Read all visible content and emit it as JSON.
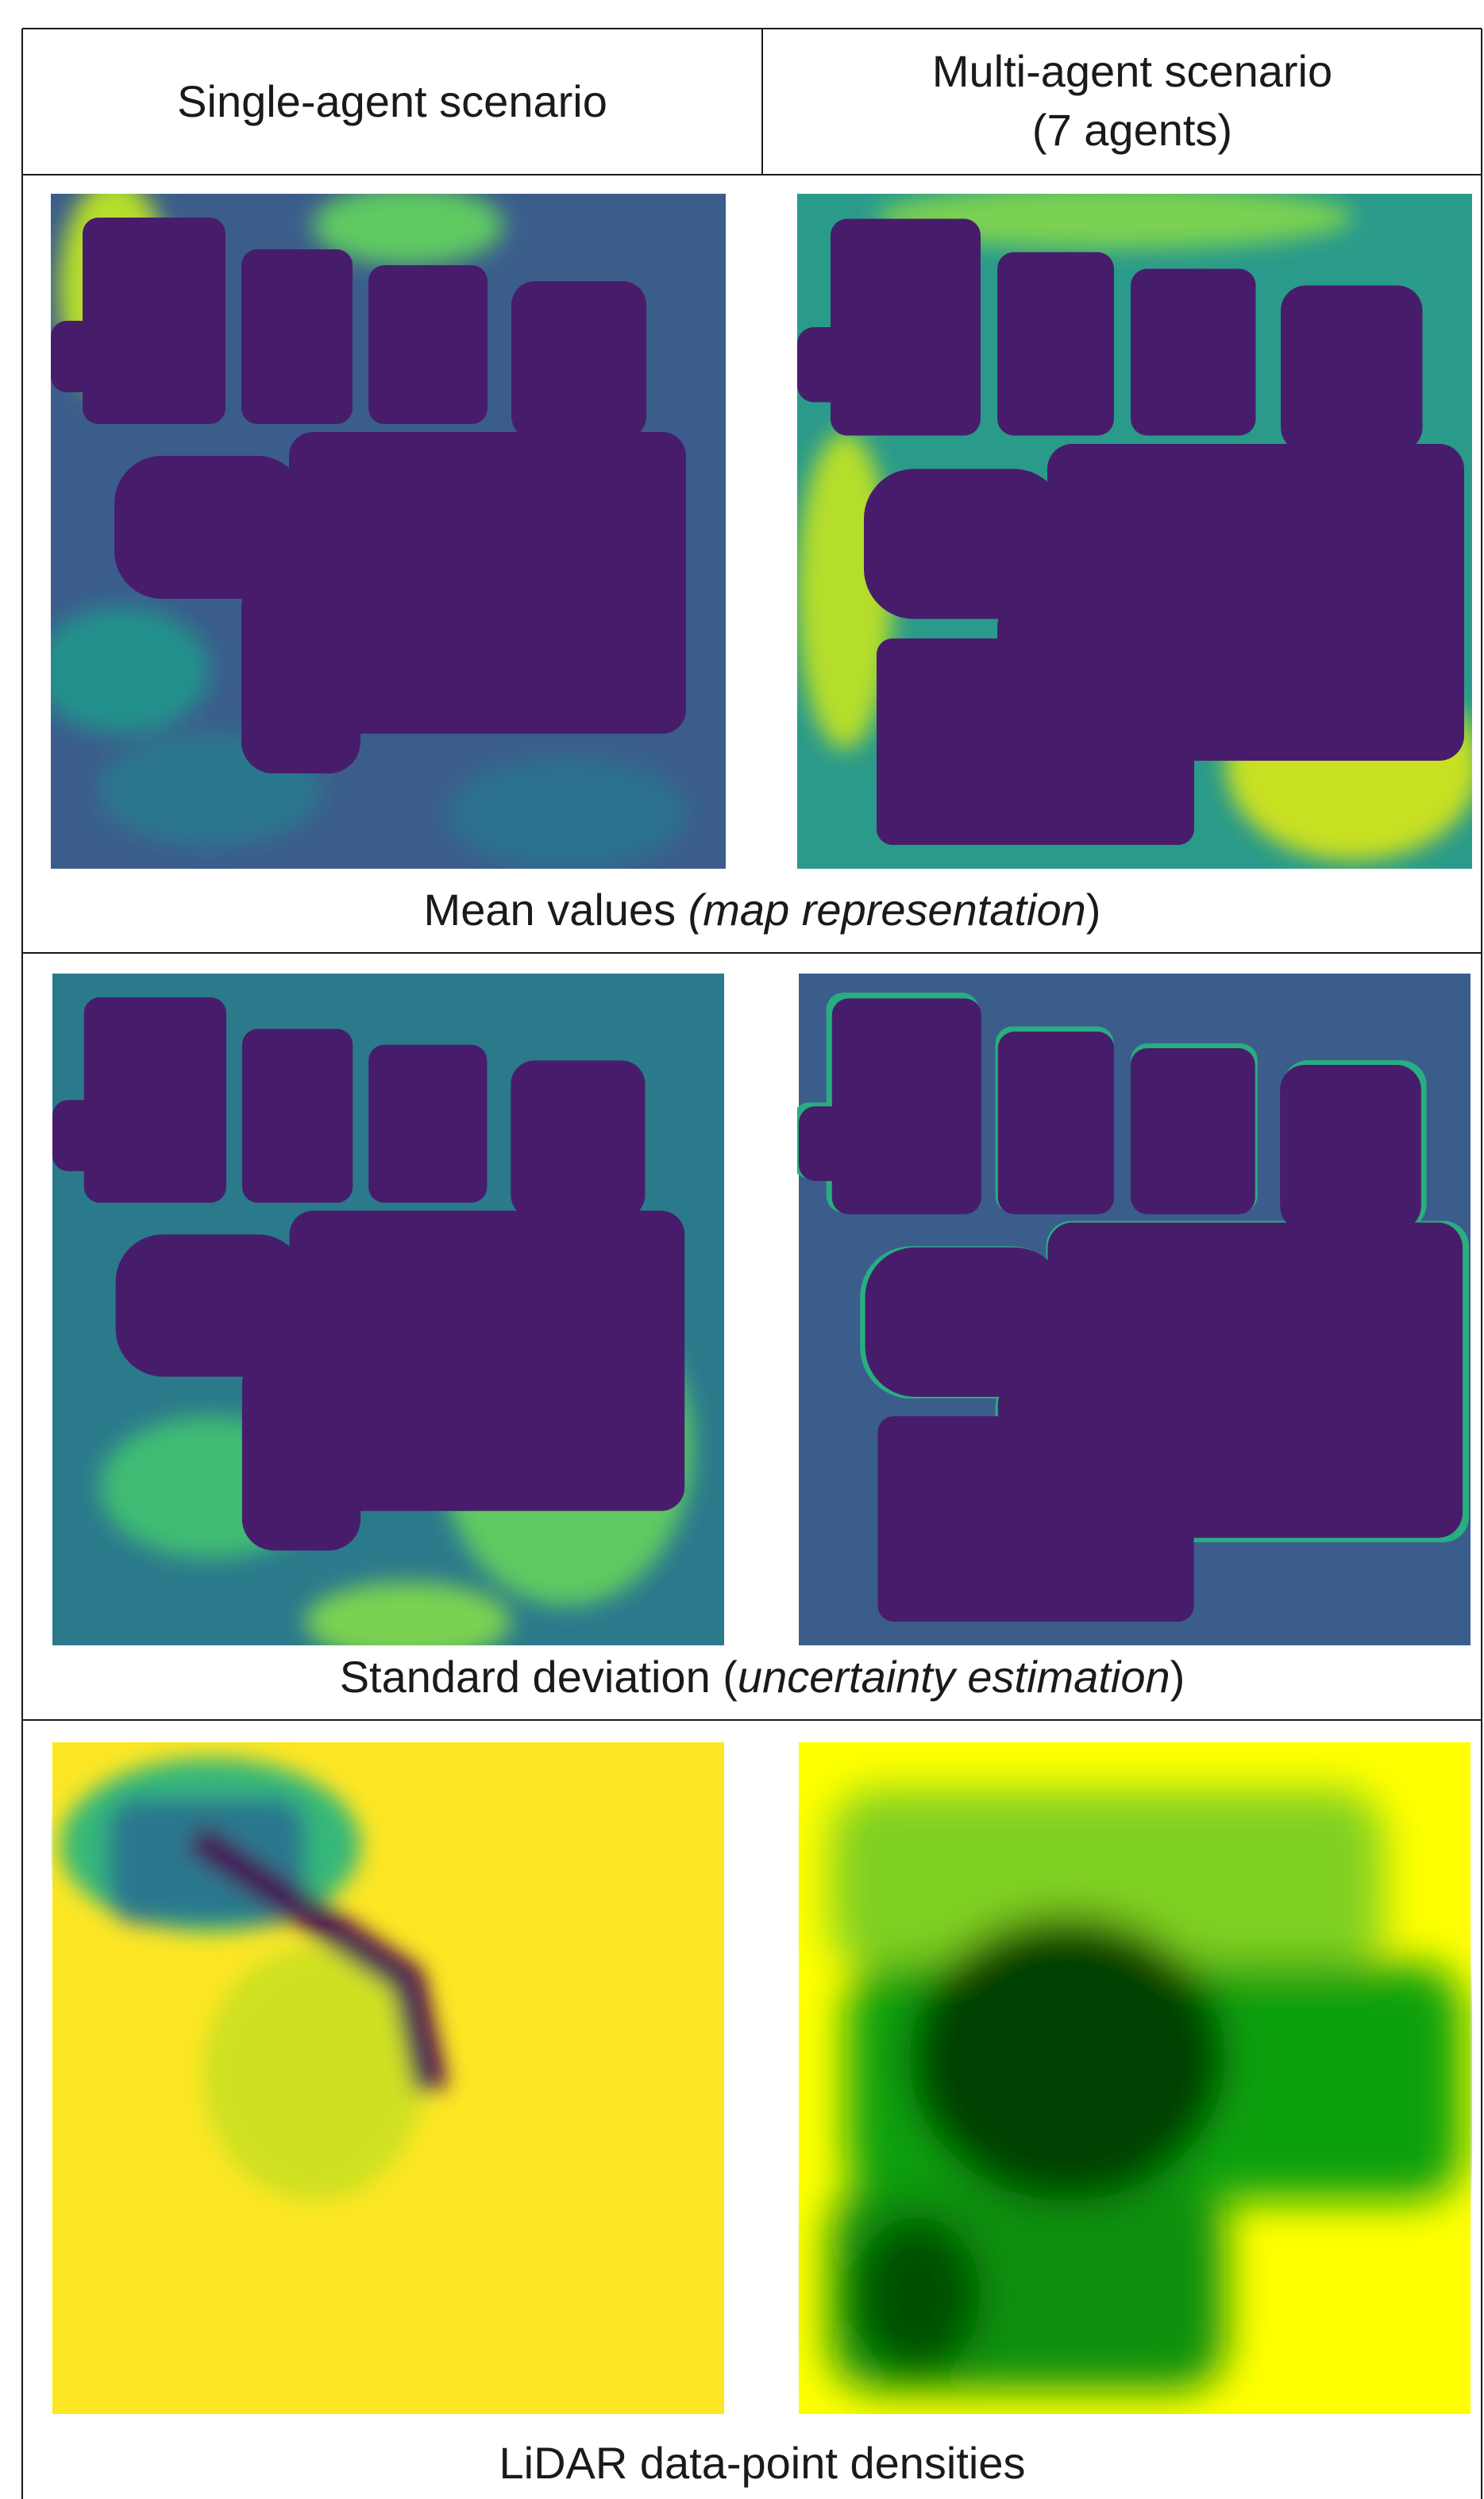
{
  "header": {
    "columns": [
      {
        "lines": [
          "Single-agent scenario"
        ]
      },
      {
        "lines": [
          "Multi-agent scenario",
          "(7 agents)"
        ]
      }
    ]
  },
  "rows": [
    {
      "caption": {
        "prefix": "Mean values ",
        "emphasis": "(map representation",
        "suffix": ")"
      }
    },
    {
      "caption": {
        "prefix": "Standard deviation (",
        "emphasis": "uncertainty estimation",
        "suffix": ")"
      }
    },
    {
      "caption": {
        "prefix": "LiDAR data-point densities",
        "emphasis": "",
        "suffix": ""
      }
    }
  ]
}
